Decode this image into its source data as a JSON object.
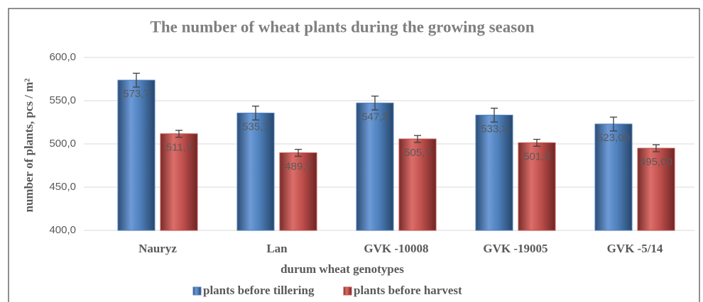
{
  "chart_data": {
    "type": "bar",
    "title": "The number of wheat plants during the growing season",
    "y_label": "number of plants, pcs / m²",
    "x_label": "durum wheat genotypes",
    "categories": [
      "Nauryz",
      "Lan",
      "GVK -10008",
      "GVK -19005",
      "GVK -5/14"
    ],
    "series": [
      {
        "name": "plants before tillering",
        "color": "#4f81bd",
        "values": [
          573.7,
          535.7,
          547.3,
          533.3,
          523.0
        ],
        "value_labels": [
          "573,7",
          "535,7",
          "547,3",
          "533,3",
          "523,00"
        ],
        "errors": [
          8,
          8,
          8,
          8,
          8
        ]
      },
      {
        "name": "plants before harvest",
        "color": "#c0504d",
        "values": [
          511.7,
          489.7,
          505.7,
          501.3,
          495.0
        ],
        "value_labels": [
          "511,7",
          "489,7",
          "505,7",
          "501,3",
          "495,00"
        ],
        "errors": [
          4,
          4,
          4,
          4,
          4
        ]
      }
    ],
    "ylim": [
      400,
      600
    ],
    "yticks": [
      {
        "value": 400,
        "label": "400,0"
      },
      {
        "value": 450,
        "label": "450,0"
      },
      {
        "value": 500,
        "label": "500,0"
      },
      {
        "value": 550,
        "label": "550,0"
      },
      {
        "value": 600,
        "label": "600,0"
      }
    ],
    "grid": true,
    "legend": "bottom"
  }
}
